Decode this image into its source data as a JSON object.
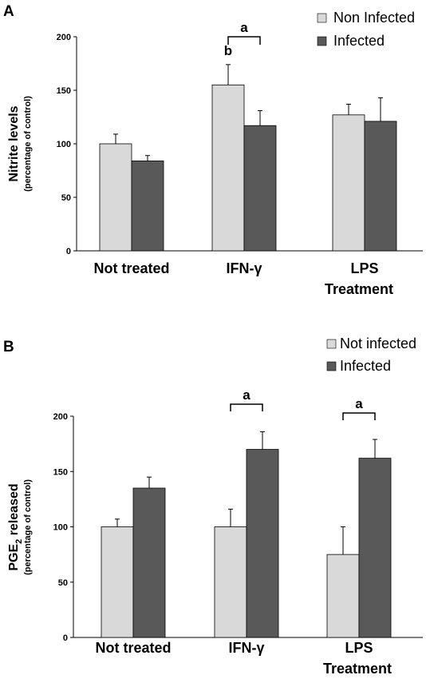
{
  "colors": {
    "light": "#d9d9d9",
    "dark": "#595959"
  },
  "chart_data": [
    {
      "panel": "A",
      "type": "bar",
      "categories": [
        "Not treated",
        "IFN-γ",
        "LPS"
      ],
      "series": [
        {
          "name": "Non Infected",
          "color": "#d9d9d9",
          "values": [
            100,
            155,
            127
          ],
          "errors": [
            9,
            19,
            10
          ]
        },
        {
          "name": "Infected",
          "color": "#595959",
          "values": [
            84,
            117,
            121
          ],
          "errors": [
            5,
            14,
            22
          ]
        }
      ],
      "xlabel": "Treatment",
      "ylabel": "Nitrite levels",
      "ylabel_sub": "(percentage of control)",
      "ylim": [
        0,
        200
      ],
      "yticks": [
        0,
        50,
        100,
        150,
        200
      ],
      "legend_position": "top-right",
      "annotations": [
        {
          "text": "b",
          "category": 1,
          "series": 0,
          "type": "label"
        },
        {
          "text": "a",
          "category": 1,
          "type": "bracket"
        }
      ]
    },
    {
      "panel": "B",
      "type": "bar",
      "categories": [
        "Not treated",
        "IFN-γ",
        "LPS"
      ],
      "series": [
        {
          "name": "Not infected",
          "color": "#d9d9d9",
          "values": [
            100,
            100,
            75
          ],
          "errors": [
            7,
            16,
            25
          ]
        },
        {
          "name": "Infected",
          "color": "#595959",
          "values": [
            135,
            170,
            162
          ],
          "errors": [
            10,
            16,
            17
          ]
        }
      ],
      "xlabel": "Treatment",
      "ylabel": "PGE2 released",
      "ylabel_main": "PGE",
      "ylabel_subscript": "2",
      "ylabel_suffix": " released",
      "ylabel_sub": "(percentage of control)",
      "ylim": [
        0,
        200
      ],
      "yticks": [
        0,
        50,
        100,
        150,
        200
      ],
      "legend_position": "top-right",
      "annotations": [
        {
          "text": "a",
          "category": 1,
          "type": "bracket"
        },
        {
          "text": "a",
          "category": 2,
          "type": "bracket"
        }
      ]
    }
  ]
}
